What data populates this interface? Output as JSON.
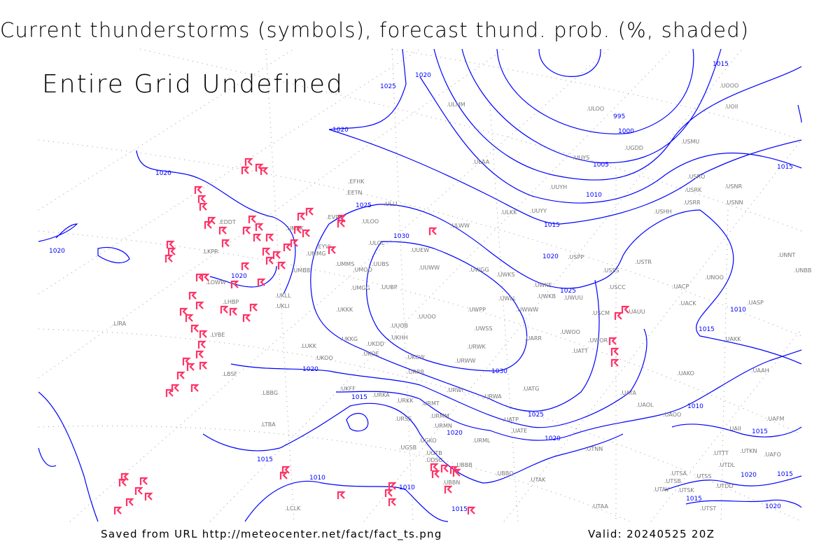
{
  "title": "Current thunderstorms (symbols), forecast thund. prob. (%, shaded)",
  "overlay_message": "Entire Grid Undefined",
  "footer": {
    "source": "Saved from URL http://meteocenter.net/fact/fact_ts.png",
    "valid": "Valid: 20240525 20Z"
  },
  "colors": {
    "isobar": "#0000ff",
    "thunderstorm_symbol": "#ff3366",
    "station_label": "#777777",
    "grid": "#999999"
  },
  "isobar_labels": [
    "1020",
    "1025",
    "1015",
    "995",
    "1000",
    "1005",
    "1010",
    "1015",
    "1020",
    "1025",
    "1020",
    "1020",
    "1020",
    "1025",
    "1030",
    "1020",
    "1030",
    "1020",
    "1015",
    "1025",
    "1020",
    "1020",
    "1015",
    "1010",
    "1010",
    "1015",
    "1015",
    "1010",
    "1015",
    "1010",
    "1015",
    "1020",
    "1015",
    "1015",
    "1020"
  ],
  "stations": [
    "UOOO",
    "UOII",
    "ULMM",
    "ULOO",
    "UUYS",
    "UGDD",
    "USMU",
    "ULAA",
    "UUYH",
    "USRO",
    "USNR",
    "USRK",
    "USRR",
    "USNN",
    "USHH",
    "EFHK",
    "EETN",
    "ULLI",
    "ULKK",
    "UUYY",
    "EVRA",
    "ULOO",
    "UMKK",
    "EDDT",
    "ULWW",
    "ULOL",
    "UUEW",
    "UMMG",
    "EYVI",
    "LKPR",
    "USPP",
    "USTR",
    "UNNT",
    "UNBB",
    "UMMS",
    "UMOO",
    "UUBS",
    "UUWW",
    "UWGG",
    "UWKS",
    "UMBB",
    "USSS",
    "UNOO",
    "LOWW",
    "UKLL",
    "UMGG",
    "UUBP",
    "UWKE",
    "UWKB",
    "UWUU",
    "USCC",
    "UACP",
    "UWLL",
    "UWWW",
    "LHBP",
    "UKLI",
    "UKKK",
    "UWPP",
    "USCM",
    "UAUU",
    "UACK",
    "UASP",
    "UUOO",
    "UWSS",
    "UUOB",
    "LIRA",
    "LYBE",
    "UKKG",
    "UKDD",
    "UKHH",
    "UWOO",
    "UWOR",
    "UARR",
    "UAKK",
    "LUKK",
    "URWK",
    "UATT",
    "UKOO",
    "UKOE",
    "UKCW",
    "URWW",
    "LBSF",
    "URRR",
    "UAKO",
    "UAAH",
    "UKFF",
    "URWI",
    "UATG",
    "UATA",
    "LBBG",
    "URKA",
    "URKK",
    "URWA",
    "URMT",
    "UAOL",
    "UAOO",
    "URSS",
    "URMM",
    "UATP",
    "URMN",
    "LTBA",
    "UATE",
    "UAII",
    "UAFM",
    "URML",
    "UGKO",
    "UGSB",
    "UGTB",
    "UTNN",
    "UTTT",
    "UTKN",
    "UAFO",
    "UDSG",
    "UBBB",
    "UTDL",
    "UBBQ",
    "UTAK",
    "UTSA",
    "UTSS",
    "UTSB",
    "UBBN",
    "UTDD",
    "UTAV",
    "UTSK",
    "UTST",
    "UTAA",
    "LCLK"
  ]
}
